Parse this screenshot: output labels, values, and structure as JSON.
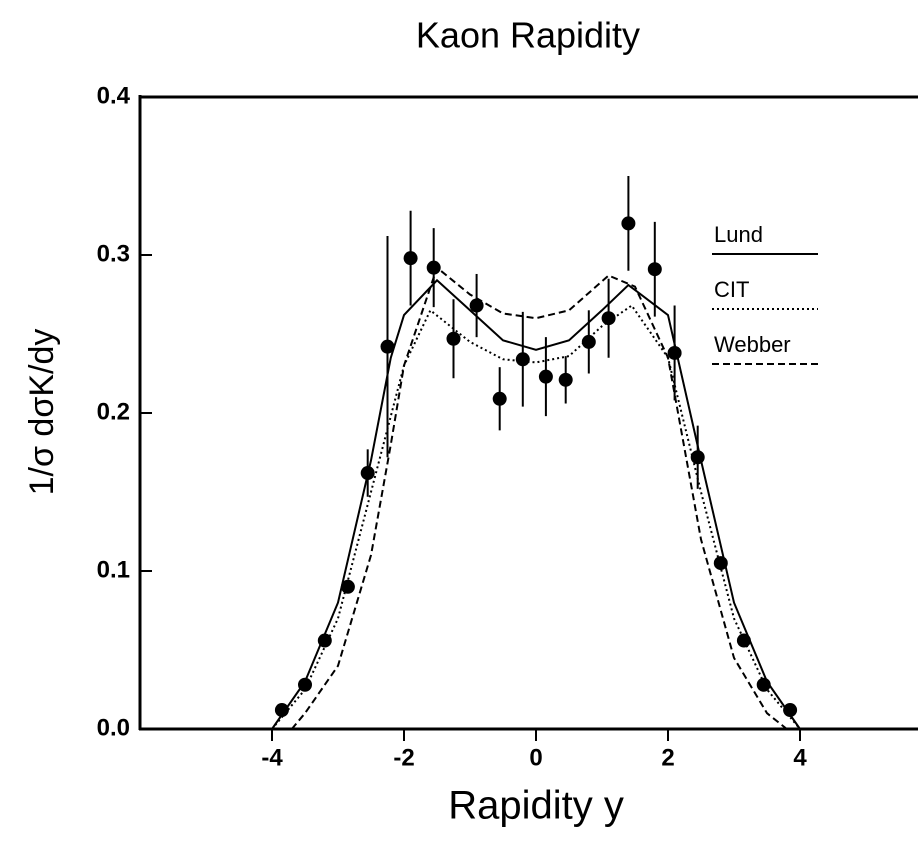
{
  "chart_data": {
    "type": "scatter",
    "title": "Kaon Rapidity",
    "x_label": "Rapidity y",
    "y_label": "1/σ dσK/dy",
    "xlim": [
      -6,
      6
    ],
    "ylim": [
      0,
      0.4
    ],
    "xticks": [
      -4,
      -2,
      0,
      2,
      4
    ],
    "yticks": [
      {
        "value": 0,
        "label": "0.0"
      },
      0.1,
      0.2,
      0.3,
      0.4
    ],
    "points": {
      "x": [
        -3.85,
        -3.5,
        -3.2,
        -2.85,
        -2.55,
        -2.25,
        -1.9,
        -1.55,
        -1.25,
        -0.9,
        -0.55,
        -0.2,
        0.15,
        0.45,
        0.8,
        1.1,
        1.4,
        1.8,
        2.1,
        2.45,
        2.8,
        3.15,
        3.45,
        3.85
      ],
      "values": [
        0.012,
        0.028,
        0.056,
        0.09,
        0.162,
        0.242,
        0.298,
        0.292,
        0.247,
        0.268,
        0.209,
        0.234,
        0.223,
        0.221,
        0.245,
        0.26,
        0.32,
        0.291,
        0.238,
        0.172,
        0.105,
        0.056,
        0.028,
        0.012
      ],
      "errors": [
        null,
        null,
        null,
        null,
        0.015,
        0.07,
        0.03,
        0.025,
        0.025,
        0.02,
        0.02,
        0.03,
        0.025,
        0.015,
        0.02,
        0.025,
        0.03,
        0.03,
        0.03,
        0.02,
        null,
        null,
        null,
        null
      ],
      "color": "#000000"
    },
    "series": [
      {
        "name": "Lund",
        "style": "solid",
        "color": "#000000",
        "x": [
          -4,
          -3.5,
          -3,
          -2.5,
          -2.2,
          -2,
          -1.5,
          -1,
          -0.5,
          0,
          0.5,
          1,
          1.4,
          2,
          2.5,
          3,
          3.5,
          4
        ],
        "values": [
          0,
          0.03,
          0.08,
          0.17,
          0.235,
          0.262,
          0.284,
          0.265,
          0.246,
          0.24,
          0.246,
          0.265,
          0.281,
          0.262,
          0.17,
          0.08,
          0.03,
          0
        ]
      },
      {
        "name": "CIT",
        "style": "dotted",
        "color": "#000000",
        "x": [
          -4,
          -3.5,
          -3,
          -2.5,
          -2,
          -1.6,
          -1,
          -0.5,
          0,
          0.5,
          1,
          1.45,
          2,
          2.5,
          3,
          3.5,
          4
        ],
        "values": [
          0,
          0.025,
          0.07,
          0.15,
          0.23,
          0.265,
          0.245,
          0.234,
          0.232,
          0.236,
          0.255,
          0.268,
          0.235,
          0.15,
          0.07,
          0.025,
          0
        ]
      },
      {
        "name": "Webber",
        "style": "dashed",
        "color": "#000000",
        "x": [
          -3.7,
          -3.5,
          -3,
          -2.5,
          -2.2,
          -2,
          -1.5,
          -1,
          -0.5,
          0,
          0.5,
          1.1,
          1.5,
          2,
          2.5,
          3,
          3.5,
          3.8
        ],
        "values": [
          0,
          0.01,
          0.04,
          0.11,
          0.18,
          0.23,
          0.292,
          0.275,
          0.263,
          0.26,
          0.265,
          0.287,
          0.28,
          0.235,
          0.12,
          0.045,
          0.01,
          0
        ]
      }
    ]
  }
}
